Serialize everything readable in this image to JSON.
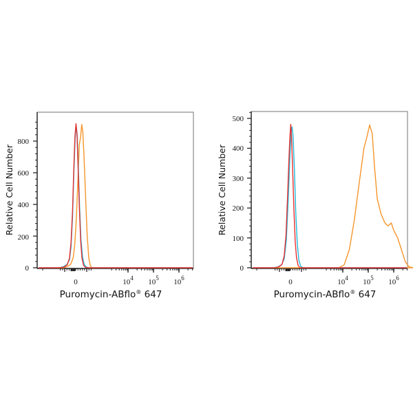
{
  "colors": {
    "red": "#e8302f",
    "cyan": "#22b8d8",
    "orange": "#f5952a",
    "axis": "#222222",
    "frame": "#8a8a8a"
  },
  "chart_data": [
    {
      "type": "line",
      "subtype": "flow-cytometry-histogram",
      "xlabel": "Puromycin-ABflo® 647",
      "ylabel": "Relative Cell Number",
      "x_scale": "biexponential",
      "x_tick_labels": [
        "0",
        "10^4",
        "10^5",
        "10^6"
      ],
      "y_ticks": [
        0,
        200,
        400,
        600,
        800
      ],
      "ylim": [
        0,
        940
      ],
      "grid": false,
      "legend": null,
      "series": [
        {
          "name": "red",
          "color": "red",
          "peak_x_label": "≈0",
          "points": [
            [
              -3.0,
              0
            ],
            [
              -2.2,
              5
            ],
            [
              -1.6,
              20
            ],
            [
              -1.2,
              60
            ],
            [
              -0.9,
              160
            ],
            [
              -0.6,
              360
            ],
            [
              -0.35,
              640
            ],
            [
              -0.15,
              830
            ],
            [
              0.05,
              910
            ],
            [
              0.25,
              840
            ],
            [
              0.45,
              640
            ],
            [
              0.7,
              380
            ],
            [
              0.95,
              170
            ],
            [
              1.2,
              60
            ],
            [
              1.5,
              15
            ],
            [
              1.9,
              2
            ],
            [
              2.3,
              0
            ]
          ]
        },
        {
          "name": "cyan",
          "color": "cyan",
          "peak_x_label": "≈0",
          "points": [
            [
              -3.2,
              0
            ],
            [
              -2.4,
              6
            ],
            [
              -1.7,
              20
            ],
            [
              -1.2,
              50
            ],
            [
              -0.9,
              130
            ],
            [
              -0.6,
              320
            ],
            [
              -0.35,
              600
            ],
            [
              -0.1,
              820
            ],
            [
              0.1,
              895
            ],
            [
              0.3,
              830
            ],
            [
              0.5,
              640
            ],
            [
              0.75,
              380
            ],
            [
              1.0,
              180
            ],
            [
              1.3,
              70
            ],
            [
              1.6,
              22
            ],
            [
              2.0,
              5
            ],
            [
              2.5,
              0
            ]
          ]
        },
        {
          "name": "orange",
          "color": "orange",
          "peak_x_label": "slightly above 0",
          "points": [
            [
              -2.4,
              0
            ],
            [
              -1.6,
              8
            ],
            [
              -1.0,
              20
            ],
            [
              -0.5,
              60
            ],
            [
              -0.2,
              140
            ],
            [
              0.1,
              300
            ],
            [
              0.4,
              530
            ],
            [
              0.7,
              780
            ],
            [
              0.95,
              830
            ],
            [
              1.15,
              905
            ],
            [
              1.35,
              860
            ],
            [
              1.6,
              690
            ],
            [
              1.9,
              440
            ],
            [
              2.2,
              200
            ],
            [
              2.5,
              60
            ],
            [
              2.8,
              12
            ],
            [
              3.1,
              0
            ]
          ]
        }
      ]
    },
    {
      "type": "line",
      "subtype": "flow-cytometry-histogram",
      "xlabel": "Puromycin-ABflo® 647",
      "ylabel": "Relative Cell Number",
      "x_scale": "biexponential",
      "x_tick_labels": [
        "0",
        "10^4",
        "10^5",
        "10^6"
      ],
      "y_ticks": [
        0,
        100,
        200,
        300,
        400,
        500
      ],
      "ylim": [
        0,
        520
      ],
      "grid": false,
      "legend": null,
      "series": [
        {
          "name": "red",
          "color": "red",
          "peak_x_label": "≈0",
          "points": [
            [
              -3.0,
              0
            ],
            [
              -2.2,
              3
            ],
            [
              -1.6,
              12
            ],
            [
              -1.2,
              40
            ],
            [
              -0.85,
              110
            ],
            [
              -0.55,
              240
            ],
            [
              -0.3,
              360
            ],
            [
              -0.1,
              440
            ],
            [
              0.05,
              480
            ],
            [
              0.2,
              440
            ],
            [
              0.4,
              340
            ],
            [
              0.65,
              200
            ],
            [
              0.9,
              90
            ],
            [
              1.15,
              35
            ],
            [
              1.45,
              8
            ],
            [
              1.8,
              0
            ]
          ]
        },
        {
          "name": "cyan",
          "color": "cyan",
          "peak_x_label": "≈0",
          "points": [
            [
              -3.2,
              0
            ],
            [
              -2.4,
              3
            ],
            [
              -1.7,
              10
            ],
            [
              -1.2,
              30
            ],
            [
              -0.8,
              90
            ],
            [
              -0.45,
              220
            ],
            [
              -0.15,
              360
            ],
            [
              0.1,
              450
            ],
            [
              0.3,
              472
            ],
            [
              0.5,
              440
            ],
            [
              0.75,
              330
            ],
            [
              1.0,
              190
            ],
            [
              1.3,
              80
            ],
            [
              1.6,
              25
            ],
            [
              1.95,
              5
            ],
            [
              2.4,
              0
            ]
          ]
        },
        {
          "name": "orange",
          "color": "orange",
          "peak_x_label": "≈10^5",
          "points": [
            [
              9.6,
              0
            ],
            [
              10.0,
              10
            ],
            [
              10.4,
              60
            ],
            [
              10.8,
              160
            ],
            [
              11.2,
              290
            ],
            [
              11.55,
              400
            ],
            [
              11.8,
              440
            ],
            [
              12.0,
              478
            ],
            [
              12.2,
              450
            ],
            [
              12.4,
              330
            ],
            [
              12.6,
              230
            ],
            [
              12.9,
              180
            ],
            [
              13.2,
              150
            ],
            [
              13.45,
              140
            ],
            [
              13.7,
              150
            ],
            [
              13.9,
              125
            ],
            [
              14.2,
              100
            ],
            [
              14.5,
              60
            ],
            [
              14.8,
              20
            ],
            [
              15.1,
              3
            ],
            [
              15.4,
              0
            ]
          ]
        }
      ]
    }
  ],
  "panels": [
    {
      "xlabel_main": "Puromycin-ABflo",
      "xlabel_reg": "®",
      "xlabel_tail": " 647",
      "ylabel": "Relative Cell Number",
      "y_tick_labels": [
        "0",
        "200",
        "400",
        "600",
        "800"
      ],
      "x_tick_labels": {
        "zero": "0",
        "base": "10",
        "e4": "4",
        "e5": "5",
        "e6": "6"
      }
    },
    {
      "xlabel_main": "Puromycin-ABflo",
      "xlabel_reg": "®",
      "xlabel_tail": " 647",
      "ylabel": "Relative Cell Number",
      "y_tick_labels": [
        "0",
        "100",
        "200",
        "300",
        "400",
        "500"
      ],
      "x_tick_labels": {
        "zero": "0",
        "base": "10",
        "e4": "4",
        "e5": "5",
        "e6": "6"
      }
    }
  ]
}
